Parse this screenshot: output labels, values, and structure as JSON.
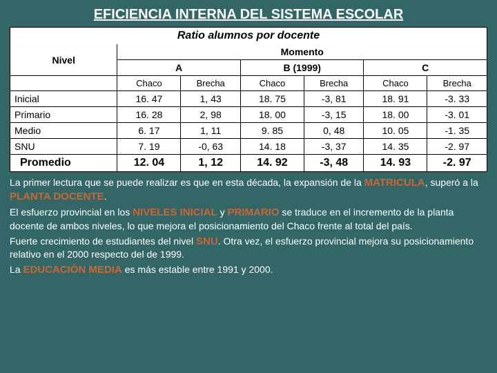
{
  "title": "EFICIENCIA INTERNA DEL SISTEMA ESCOLAR",
  "subtitle": "Ratio alumnos por docente",
  "table": {
    "momento_label": "Momento",
    "nivel_label": "Nivel",
    "periods": {
      "a": "A",
      "b": "B (1999)",
      "c": "C"
    },
    "subcols": {
      "chaco": "Chaco",
      "brecha": "Brecha"
    },
    "rows": [
      {
        "label": "Inicial",
        "a_chaco": "16. 47",
        "a_brecha": "1, 43",
        "b_chaco": "18. 75",
        "b_brecha": "-3, 81",
        "c_chaco": "18. 91",
        "c_brecha": "-3. 33"
      },
      {
        "label": "Primario",
        "a_chaco": "16. 28",
        "a_brecha": "2, 98",
        "b_chaco": "18. 00",
        "b_brecha": "-3, 15",
        "c_chaco": "18. 00",
        "c_brecha": "-3. 01"
      },
      {
        "label": "Medio",
        "a_chaco": "6. 17",
        "a_brecha": "1, 11",
        "b_chaco": "9. 85",
        "b_brecha": "0, 48",
        "c_chaco": "10. 05",
        "c_brecha": "-1. 35"
      },
      {
        "label": "SNU",
        "a_chaco": "7. 19",
        "a_brecha": "-0, 63",
        "b_chaco": "14. 18",
        "b_brecha": "-3, 37",
        "c_chaco": "14. 35",
        "c_brecha": "-2. 97"
      }
    ],
    "promedio": {
      "label": "Promedio",
      "a_chaco": "12. 04",
      "a_brecha": "1, 12",
      "b_chaco": "14. 92",
      "b_brecha": "-3, 48",
      "c_chaco": "14. 93",
      "c_brecha": "-2. 97"
    }
  },
  "body": {
    "p1_a": "La primer lectura que se puede realizar es que en esta década, la expansión de la ",
    "p1_h1": "MATRICULA",
    "p1_b": ", superó a la ",
    "p1_h2": "PLANTA DOCENTE",
    "p1_c": ".",
    "p2_a": "El esfuerzo provincial en los ",
    "p2_h1": "NIVELES INICIAL",
    "p2_b": " y ",
    "p2_h2": "PRIMARIO",
    "p2_c": " se traduce en el incremento de la planta docente de ambos niveles, lo que mejora el posicionamiento del Chaco frente al total del país.",
    "p3_a": "Fuerte crecimiento de estudiantes del nivel ",
    "p3_h1": "SNU",
    "p3_b": ". Otra vez, el esfuerzo provincial mejora su posicionamiento relativo en el 2000 respecto del de 1999.",
    "p4_a": "La ",
    "p4_h1": "EDUCACIÓN MEDIA",
    "p4_b": " es más estable entre 1991 y 2000."
  },
  "colors": {
    "background": "#336666",
    "highlight": "#cc6633",
    "text": "#ffffff",
    "table_bg": "#ffffff",
    "border": "#000000"
  }
}
